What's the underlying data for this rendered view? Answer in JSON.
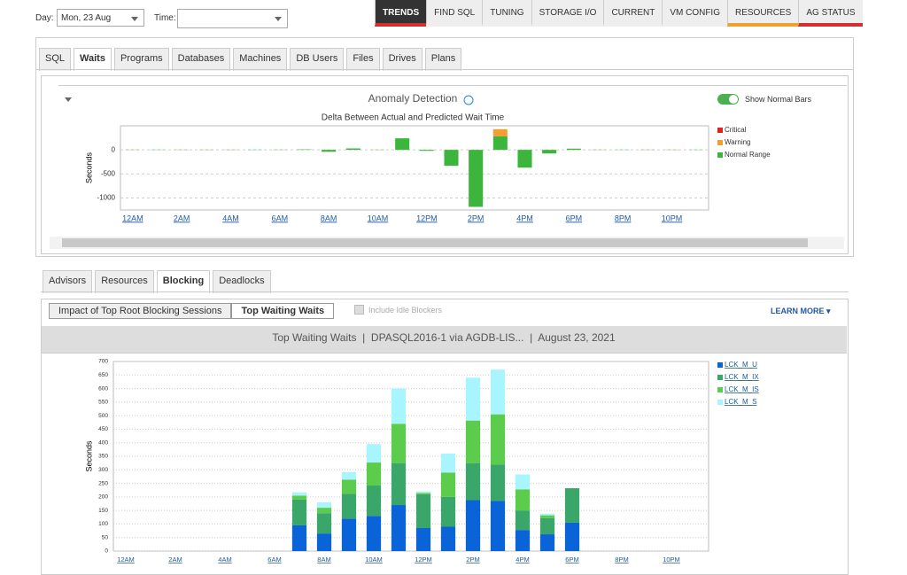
{
  "ui": {
    "day_label": "Day:",
    "day_value": "Mon, 23 Aug",
    "time_label": "Time:",
    "nav": [
      "TRENDS",
      "FIND SQL",
      "TUNING",
      "STORAGE I/O",
      "CURRENT",
      "VM CONFIG",
      "RESOURCES",
      "AG STATUS"
    ],
    "tabs": [
      "SQL",
      "Waits",
      "Programs",
      "Databases",
      "Machines",
      "DB Users",
      "Files",
      "Drives",
      "Plans"
    ],
    "toggle_label": "Show Normal Bars",
    "subtabs": [
      "Advisors",
      "Resources",
      "Blocking",
      "Deadlocks"
    ],
    "view_buttons": [
      "Impact of Top Root Blocking Sessions",
      "Top Waiting Waits"
    ],
    "checkbox_label": "Include Idle Blockers",
    "learn_more": "LEARN MORE"
  },
  "chart_data": [
    {
      "type": "bar",
      "stacked": true,
      "title": "Anomaly Detection",
      "subtitle": "Delta Between Actual and Predicted Wait Time",
      "y_label": "Seconds",
      "legend": "right",
      "legend_reversed": true,
      "grid": true,
      "categories": [
        "12AM",
        null,
        "2AM",
        null,
        "4AM",
        null,
        "6AM",
        null,
        "8AM",
        null,
        "10AM",
        null,
        "12PM",
        null,
        "2PM",
        null,
        "4PM",
        null,
        "6PM",
        null,
        "8PM",
        null,
        "10PM",
        null
      ],
      "series": [
        {
          "name": "Normal Range",
          "color": "#3bb53b",
          "values": [
            5,
            5,
            5,
            5,
            5,
            5,
            5,
            10,
            -40,
            30,
            5,
            240,
            -20,
            -330,
            -1185,
            280,
            -370,
            -75,
            25,
            5,
            5,
            5,
            5,
            5
          ]
        },
        {
          "name": "Warning",
          "color": "#f0a030",
          "values": [
            null,
            null,
            null,
            null,
            null,
            null,
            null,
            null,
            null,
            null,
            null,
            null,
            null,
            null,
            null,
            150,
            null,
            null,
            null,
            null,
            null,
            null,
            null,
            null
          ]
        },
        {
          "name": "Critical",
          "color": "#dd2222",
          "values": [
            null,
            null,
            null,
            null,
            null,
            null,
            null,
            null,
            null,
            null,
            null,
            null,
            null,
            null,
            null,
            null,
            null,
            null,
            null,
            null,
            null,
            null,
            null,
            null
          ]
        }
      ],
      "ylim": [
        -1250,
        500
      ],
      "yticks": [
        0,
        -500,
        -1000
      ]
    },
    {
      "type": "bar",
      "stacked": true,
      "title": "Top Waiting Waits  |  DPASQL2016-1 via AGDB-LIS...  |  August 23, 2021",
      "y_label": "Seconds",
      "legend": "right",
      "legend_reversed": false,
      "grid": true,
      "categories": [
        "12AM",
        null,
        "2AM",
        null,
        "4AM",
        null,
        "6AM",
        null,
        "8AM",
        null,
        "10AM",
        null,
        "12PM",
        null,
        "2PM",
        null,
        "4PM",
        null,
        "6PM",
        null,
        "8PM",
        null,
        "10PM",
        null
      ],
      "series": [
        {
          "name": "LCK_M_U",
          "color": "#0a64d8",
          "values": [
            null,
            null,
            null,
            null,
            null,
            null,
            null,
            95,
            65,
            120,
            130,
            170,
            85,
            90,
            188,
            185,
            78,
            62,
            105,
            null,
            null,
            null,
            null,
            null
          ]
        },
        {
          "name": "LCK_M_IX",
          "color": "#3aa66a",
          "values": [
            null,
            null,
            null,
            null,
            null,
            null,
            null,
            95,
            75,
            92,
            112,
            155,
            125,
            110,
            137,
            135,
            72,
            60,
            127,
            null,
            null,
            null,
            null,
            null
          ]
        },
        {
          "name": "LCK_M_IS",
          "color": "#5ccc4c",
          "values": [
            null,
            null,
            null,
            null,
            null,
            null,
            null,
            15,
            20,
            52,
            85,
            145,
            5,
            90,
            157,
            185,
            78,
            10,
            null,
            null,
            null,
            null,
            null,
            null
          ]
        },
        {
          "name": "LCK_M_S",
          "color": "#a8f4ff",
          "values": [
            null,
            null,
            null,
            null,
            null,
            null,
            null,
            12,
            20,
            28,
            68,
            130,
            5,
            70,
            158,
            165,
            55,
            6,
            null,
            null,
            null,
            null,
            null,
            null
          ]
        }
      ],
      "ylim": [
        0,
        700
      ],
      "yticks": [
        0,
        50,
        100,
        150,
        200,
        250,
        300,
        350,
        400,
        450,
        500,
        550,
        600,
        650,
        700
      ]
    }
  ]
}
